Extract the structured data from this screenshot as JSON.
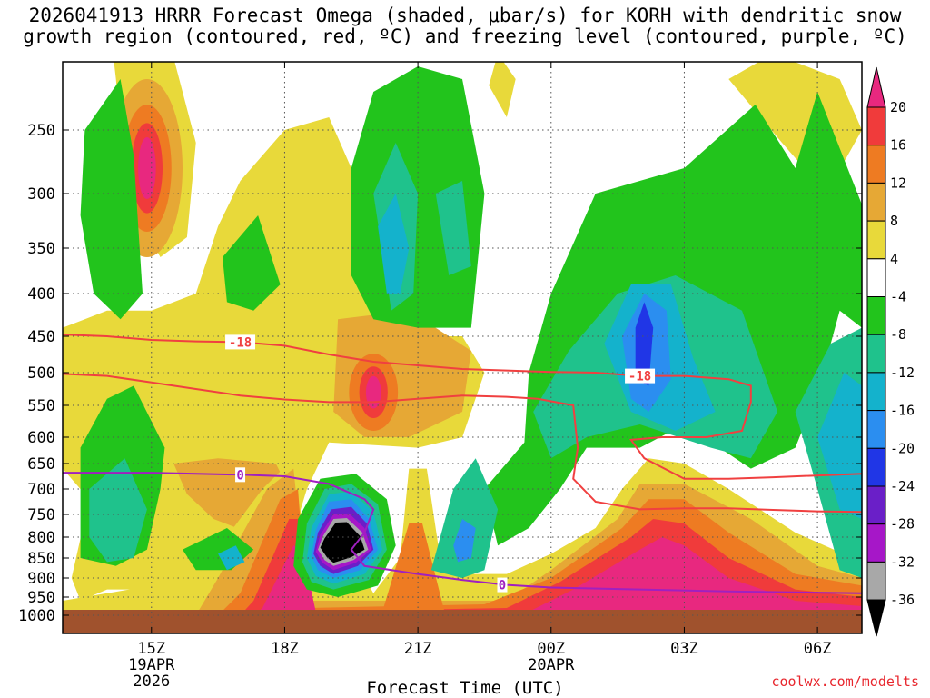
{
  "title_line1": "2026041913 HRRR Forecast Omega (shaded, μbar/s) for KORH with dendritic snow",
  "title_line2": "growth region (contoured, red, ºC) and freezing level (contoured, purple, ºC)",
  "credit": "coolwx.com/modelts",
  "colors": {
    "ground": "#a0522d",
    "dgz_contour": "#f04040",
    "freezing_contour": "#a020c0",
    "grid": "#555555"
  },
  "chart_data": {
    "type": "heatmap",
    "title": "2026041913 HRRR Forecast Omega (shaded, μbar/s) for KORH with dendritic snow growth region (contoured, red, ºC) and freezing level (contoured, purple, ºC)",
    "xlabel": "Forecast Time (UTC)",
    "ylabel": "",
    "x_ticks": [
      {
        "hour": 15,
        "label": "15Z",
        "sub1": "19APR",
        "sub2": "2026"
      },
      {
        "hour": 18,
        "label": "18Z",
        "sub1": "",
        "sub2": ""
      },
      {
        "hour": 21,
        "label": "21Z",
        "sub1": "",
        "sub2": ""
      },
      {
        "hour": 24,
        "label": "00Z",
        "sub1": "20APR",
        "sub2": ""
      },
      {
        "hour": 27,
        "label": "03Z",
        "sub1": "",
        "sub2": ""
      },
      {
        "hour": 30,
        "label": "06Z",
        "sub1": "",
        "sub2": ""
      }
    ],
    "xlim_hours": [
      13,
      31
    ],
    "y_ticks": [
      250,
      300,
      350,
      400,
      450,
      500,
      550,
      600,
      650,
      700,
      750,
      800,
      850,
      900,
      950,
      1000
    ],
    "ylim_hPa": [
      200,
      1020
    ],
    "colorbar": {
      "label_values": [
        20,
        16,
        12,
        8,
        4,
        -4,
        -8,
        -12,
        -16,
        -20,
        -24,
        -28,
        -32,
        -36
      ],
      "bins": [
        {
          "range": ">20",
          "color": "#e8287f"
        },
        {
          "range": "16 to 20",
          "color": "#f03b3b"
        },
        {
          "range": "12 to 16",
          "color": "#ee7b22"
        },
        {
          "range": "8 to 12",
          "color": "#e6a835"
        },
        {
          "range": "4 to 8",
          "color": "#e8d93a"
        },
        {
          "range": "-4 to 4",
          "color": "#ffffff"
        },
        {
          "range": "-8 to -4",
          "color": "#22c41c"
        },
        {
          "range": "-12 to -8",
          "color": "#1fc28c"
        },
        {
          "range": "-16 to -12",
          "color": "#14b2cc"
        },
        {
          "range": "-20 to -16",
          "color": "#2b8ef0"
        },
        {
          "range": "-24 to -20",
          "color": "#2036e6"
        },
        {
          "range": "-28 to -24",
          "color": "#6a1fc8"
        },
        {
          "range": "-32 to -28",
          "color": "#a617c8"
        },
        {
          "range": "-36 to -32",
          "color": "#a8a8a8"
        },
        {
          "range": "<-36",
          "color": "#000000"
        }
      ]
    },
    "omega_features": [
      {
        "center_hour": 14.9,
        "center_hPa": 280,
        "peak": 22,
        "shade_levels": [
          4,
          8,
          12,
          16,
          20
        ]
      },
      {
        "center_hour": 20.0,
        "center_hPa": 530,
        "peak": 22,
        "shade_levels": [
          4,
          8,
          12,
          16,
          20
        ]
      },
      {
        "center_hour": 19.0,
        "center_hPa": 815,
        "peak": -40,
        "shade_levels": [
          -4,
          -8,
          -12,
          -16,
          -20,
          -24,
          -28,
          -32,
          -36
        ]
      },
      {
        "center_hour": 26.0,
        "center_hPa": 470,
        "peak": -22,
        "shade_levels": [
          -4,
          -8,
          -12,
          -16,
          -20
        ]
      },
      {
        "center_hour": 20.3,
        "center_hPa": 360,
        "peak": -14,
        "shade_levels": [
          -4,
          -8,
          -12
        ]
      },
      {
        "center_hour": 22.0,
        "center_hPa": 800,
        "peak": -20,
        "shade_levels": [
          -4,
          -8,
          -12,
          -16
        ]
      },
      {
        "center_hour": 17.0,
        "center_hPa": 370,
        "peak": -9,
        "shade_levels": [
          -4,
          -8
        ]
      },
      {
        "center_hour": 26.5,
        "center_hPa": 820,
        "peak": 22,
        "shade_levels": [
          4,
          8,
          12,
          16,
          20
        ]
      },
      {
        "center_hour": 24.0,
        "center_hPa": 930,
        "peak": 22,
        "shade_levels": [
          4,
          8,
          12,
          16,
          20
        ]
      }
    ],
    "series": [
      {
        "name": "-18",
        "color": "#f04040",
        "points": [
          [
            13.0,
            448
          ],
          [
            14.0,
            450
          ],
          [
            15.0,
            455
          ],
          [
            16.0,
            457
          ],
          [
            17.0,
            458
          ],
          [
            18.0,
            463
          ],
          [
            19.0,
            475
          ],
          [
            20.0,
            485
          ],
          [
            21.0,
            490
          ],
          [
            22.0,
            495
          ],
          [
            23.0,
            497
          ],
          [
            24.0,
            499
          ],
          [
            25.0,
            500
          ],
          [
            26.0,
            505
          ],
          [
            26.5,
            505
          ],
          [
            27.0,
            505
          ],
          [
            28.0,
            510
          ],
          [
            28.5,
            520
          ],
          [
            28.5,
            545
          ],
          [
            28.3,
            590
          ],
          [
            27.5,
            600
          ],
          [
            26.5,
            600
          ],
          [
            25.8,
            605
          ],
          [
            26.1,
            640
          ],
          [
            27.0,
            680
          ],
          [
            28.0,
            680
          ],
          [
            29.0,
            677
          ],
          [
            31.0,
            670
          ]
        ]
      },
      {
        "name": "-18 lower",
        "color": "#f04040",
        "points": [
          [
            13.0,
            502
          ],
          [
            14.0,
            505
          ],
          [
            15.0,
            515
          ],
          [
            16.0,
            525
          ],
          [
            17.0,
            535
          ],
          [
            18.0,
            541
          ],
          [
            19.0,
            545
          ],
          [
            20.0,
            545
          ],
          [
            21.0,
            540
          ],
          [
            22.0,
            535
          ],
          [
            23.0,
            537
          ],
          [
            23.7,
            540
          ],
          [
            24.5,
            550
          ],
          [
            24.6,
            620
          ],
          [
            24.5,
            680
          ],
          [
            25.0,
            725
          ],
          [
            26.0,
            740
          ],
          [
            27.0,
            738
          ],
          [
            28.0,
            738
          ],
          [
            29.0,
            741
          ],
          [
            30.0,
            744
          ],
          [
            31.0,
            745
          ]
        ]
      },
      {
        "name": "0",
        "color": "#a020c0",
        "points": [
          [
            13.0,
            668
          ],
          [
            15.0,
            668
          ],
          [
            17.0,
            672
          ],
          [
            18.0,
            675
          ],
          [
            19.0,
            690
          ],
          [
            19.8,
            720
          ],
          [
            20.0,
            740
          ],
          [
            19.8,
            790
          ],
          [
            19.5,
            830
          ],
          [
            19.8,
            870
          ],
          [
            21.0,
            890
          ],
          [
            22.0,
            905
          ],
          [
            23.0,
            918
          ],
          [
            24.0,
            925
          ],
          [
            26.0,
            930
          ],
          [
            28.0,
            935
          ],
          [
            31.0,
            940
          ]
        ]
      }
    ],
    "contour_labels": [
      {
        "text": "-18",
        "hour": 17.0,
        "hPa": 458
      },
      {
        "text": "-18",
        "hour": 26.0,
        "hPa": 505
      },
      {
        "text": "0",
        "hour": 17.0,
        "hPa": 672
      },
      {
        "text": "0",
        "hour": 22.9,
        "hPa": 918
      }
    ],
    "ground_level_hPa": 985
  }
}
